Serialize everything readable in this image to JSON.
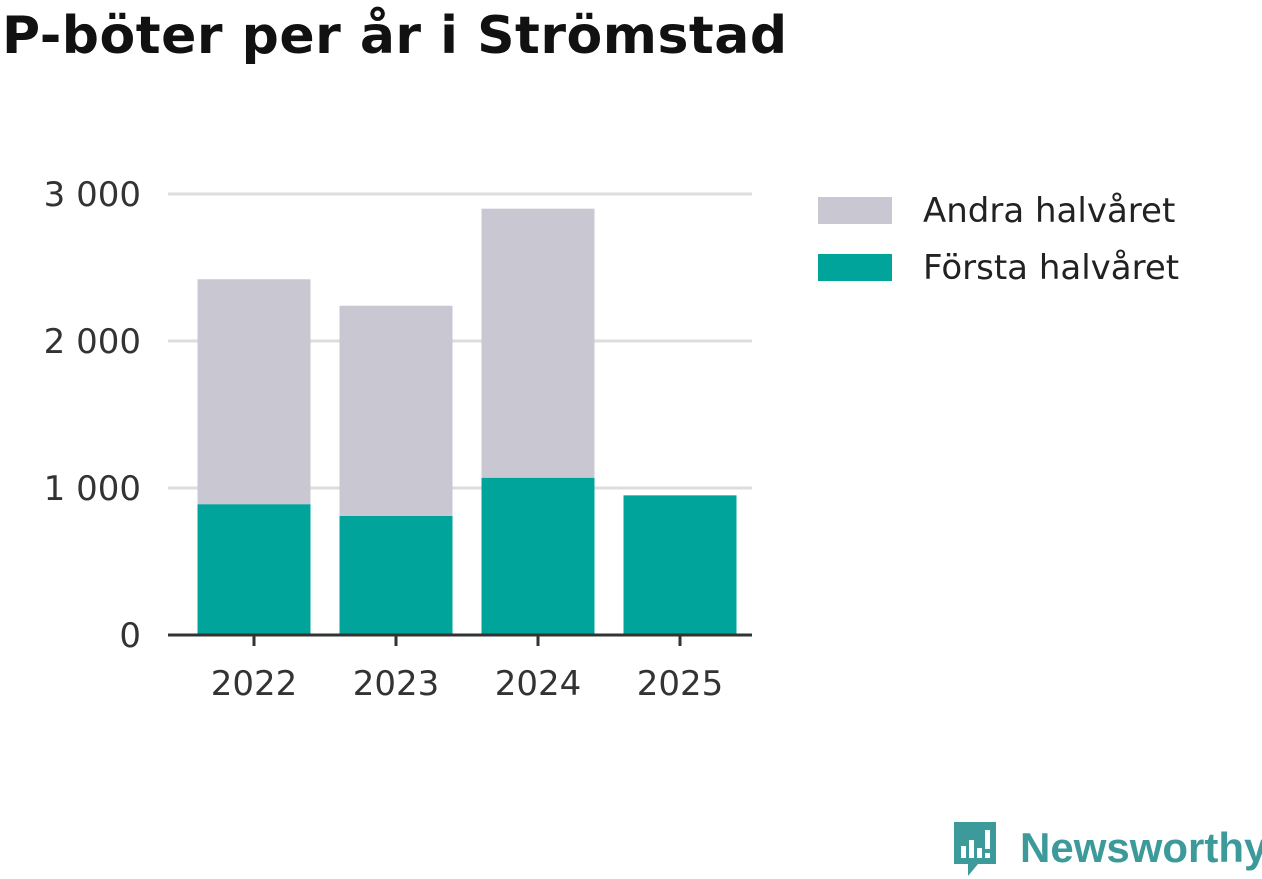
{
  "title": "P-böter per år i Strömstad",
  "brand": {
    "name": "Newsworthy",
    "icon": "newsworthy-logo-icon"
  },
  "colors": {
    "first_half": "#00a49b",
    "second_half": "#c8c7d2",
    "grid": "#dddddd",
    "axis": "#333333",
    "brand": "#3d9a9b"
  },
  "chart_data": {
    "type": "bar",
    "stacked": true,
    "title": "P-böter per år i Strömstad",
    "xlabel": "",
    "ylabel": "",
    "categories": [
      "2022",
      "2023",
      "2024",
      "2025"
    ],
    "series": [
      {
        "name": "Första halvåret",
        "color": "#00a49b",
        "values": [
          890,
          810,
          1070,
          950
        ]
      },
      {
        "name": "Andra halvåret",
        "color": "#c8c7d2",
        "values": [
          1530,
          1430,
          1830,
          0
        ]
      }
    ],
    "yticks": [
      0,
      1000,
      2000,
      3000
    ],
    "ytick_labels": [
      "0",
      "1 000",
      "2 000",
      "3 000"
    ],
    "ylim": [
      0,
      3000
    ],
    "grid": true,
    "legend_position": "top-right"
  },
  "legend": [
    {
      "label": "Andra halvåret",
      "color": "#c8c7d2"
    },
    {
      "label": "Första halvåret",
      "color": "#00a49b"
    }
  ]
}
